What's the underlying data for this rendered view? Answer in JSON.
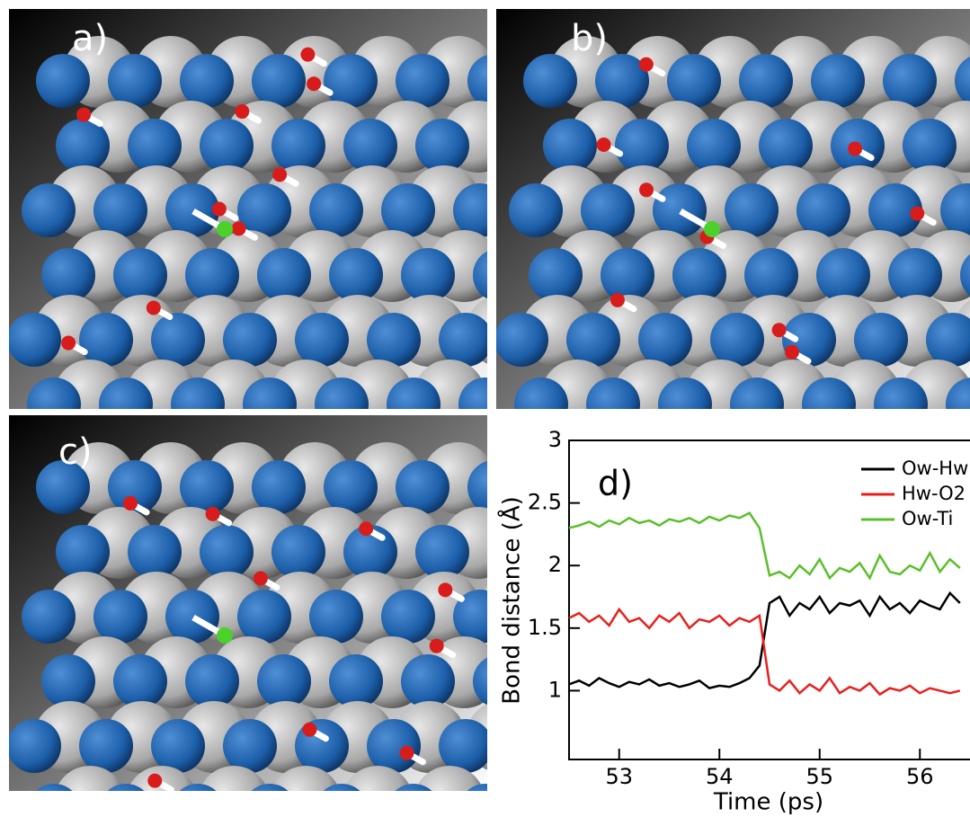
{
  "panels": [
    {
      "label": "a)"
    },
    {
      "label": "b)"
    },
    {
      "label": "c)"
    }
  ],
  "chart_data": {
    "type": "line",
    "annotation": "d)",
    "x_label": "Time (ps)",
    "y_label": "Bond distance (Å)",
    "x": [
      52.5,
      52.6,
      52.7,
      52.8,
      52.9,
      53.0,
      53.1,
      53.2,
      53.3,
      53.4,
      53.5,
      53.6,
      53.7,
      53.8,
      53.9,
      54.0,
      54.1,
      54.2,
      54.3,
      54.4,
      54.5,
      54.6,
      54.7,
      54.8,
      54.9,
      55.0,
      55.1,
      55.2,
      55.3,
      55.4,
      55.5,
      55.6,
      55.7,
      55.8,
      55.9,
      56.0,
      56.1,
      56.2,
      56.3,
      56.4
    ],
    "series": [
      {
        "name": "Ow-Hw",
        "color": "#000000",
        "values": [
          1.05,
          1.08,
          1.04,
          1.1,
          1.06,
          1.03,
          1.07,
          1.05,
          1.09,
          1.04,
          1.06,
          1.03,
          1.05,
          1.08,
          1.02,
          1.04,
          1.03,
          1.06,
          1.1,
          1.2,
          1.7,
          1.75,
          1.6,
          1.7,
          1.65,
          1.75,
          1.62,
          1.7,
          1.68,
          1.72,
          1.6,
          1.75,
          1.65,
          1.7,
          1.62,
          1.72,
          1.68,
          1.65,
          1.78,
          1.7
        ]
      },
      {
        "name": "Hw-O2",
        "color": "#e8201c",
        "values": [
          1.58,
          1.62,
          1.55,
          1.6,
          1.52,
          1.65,
          1.55,
          1.58,
          1.5,
          1.6,
          1.55,
          1.62,
          1.5,
          1.57,
          1.55,
          1.6,
          1.52,
          1.58,
          1.55,
          1.6,
          1.05,
          1.0,
          1.08,
          0.98,
          1.05,
          1.0,
          1.1,
          0.98,
          1.03,
          1.0,
          1.06,
          0.97,
          1.02,
          1.0,
          1.04,
          0.98,
          1.02,
          1.0,
          0.98,
          1.0
        ]
      },
      {
        "name": "Ow-Ti",
        "color": "#5bbf2a",
        "values": [
          2.3,
          2.32,
          2.35,
          2.31,
          2.36,
          2.33,
          2.38,
          2.34,
          2.36,
          2.32,
          2.37,
          2.35,
          2.38,
          2.34,
          2.39,
          2.36,
          2.4,
          2.38,
          2.42,
          2.3,
          1.92,
          1.95,
          1.9,
          2.0,
          1.93,
          2.05,
          1.9,
          1.98,
          1.95,
          2.02,
          1.9,
          2.08,
          1.95,
          1.93,
          2.0,
          1.96,
          2.1,
          1.95,
          2.05,
          1.98
        ]
      }
    ],
    "xlim": [
      52.5,
      56.5
    ],
    "xticks": [
      53,
      54,
      55,
      56
    ],
    "ylim": [
      0.45,
      3
    ],
    "yticks": [
      1,
      1.5,
      2,
      2.5,
      3
    ]
  }
}
